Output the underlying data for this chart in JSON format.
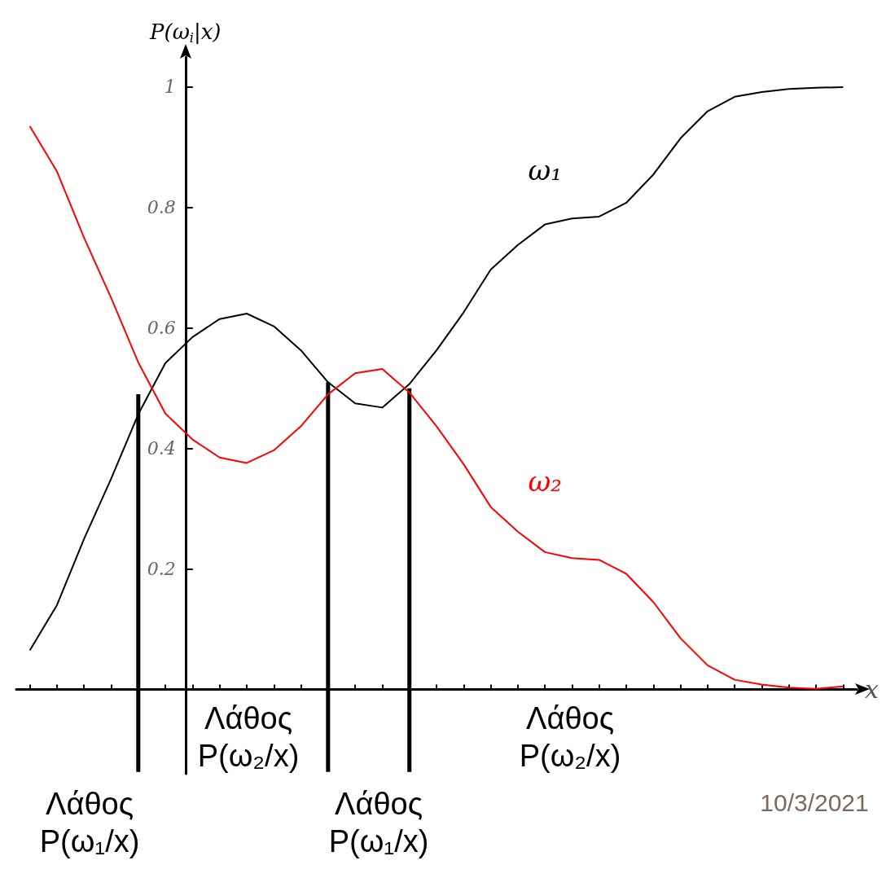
{
  "chart_data": {
    "type": "line",
    "ylabel": "P(ω$_{i}$|x)",
    "xlabel": "x",
    "categories": [
      null,
      null,
      null,
      null,
      null,
      null,
      null,
      null,
      null,
      null,
      null,
      null,
      null,
      null,
      null,
      null,
      null,
      null,
      null,
      null,
      null,
      null,
      null,
      null,
      null,
      null,
      null,
      null,
      null,
      null,
      null
    ],
    "series": [
      {
        "name": "ω₁",
        "color": "#000000",
        "values": [
          0.065,
          0.14,
          0.25,
          0.35,
          0.457,
          0.542,
          0.585,
          0.615,
          0.624,
          0.603,
          0.563,
          0.51,
          0.475,
          0.468,
          0.507,
          0.563,
          0.626,
          0.697,
          0.738,
          0.772,
          0.782,
          0.785,
          0.808,
          0.855,
          0.915,
          0.96,
          0.984,
          0.992,
          0.997,
          0.999,
          1.0
        ]
      },
      {
        "name": "ω₂",
        "color": "#ff0000",
        "values": [
          0.935,
          0.86,
          0.75,
          0.65,
          0.543,
          0.458,
          0.415,
          0.385,
          0.376,
          0.397,
          0.437,
          0.49,
          0.525,
          0.532,
          0.493,
          0.437,
          0.374,
          0.303,
          0.262,
          0.228,
          0.218,
          0.215,
          0.192,
          0.145,
          0.085,
          0.04,
          0.016,
          0.008,
          0.003,
          0.001,
          0.005
        ]
      },
      {
        "type": "bar",
        "color": "#000000",
        "values": [
          null,
          null,
          null,
          null,
          0.627,
          null,
          null,
          null,
          null,
          null,
          null,
          0.647,
          null,
          null,
          0.637,
          null,
          null,
          null,
          null,
          null,
          null,
          null,
          null,
          null,
          null,
          null,
          null,
          null,
          null,
          null,
          null
        ],
        "base": [
          null,
          null,
          null,
          null,
          -0.137,
          null,
          null,
          null,
          null,
          null,
          null,
          -0.137,
          null,
          null,
          -0.137,
          null,
          null,
          null,
          null,
          null,
          null,
          null,
          null,
          null,
          null,
          null,
          null,
          null,
          null,
          null,
          null
        ]
      }
    ],
    "marker": "none",
    "ylim": [
      -0.14,
      1.05
    ],
    "yticks": [
      0.2,
      0.4,
      0.6,
      0.8,
      1
    ],
    "annotations": [
      "Λάθος\nP(ω₁/x)",
      "Λάθος\nP(ω₂/x)",
      "Λάθος\nP(ω₁/x)",
      "Λάθος\nP(ω₂/x)",
      "10/3/2021"
    ]
  }
}
